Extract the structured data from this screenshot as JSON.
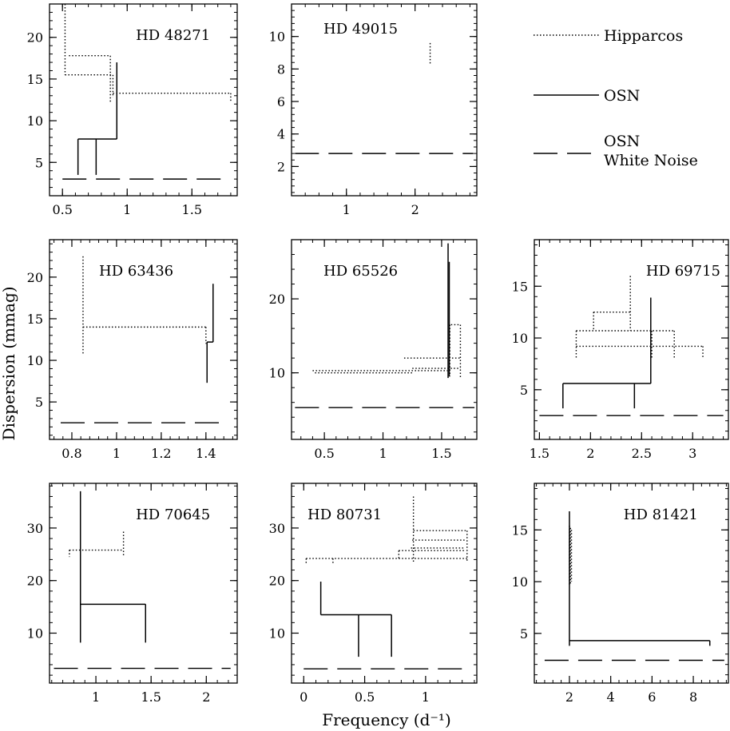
{
  "figure": {
    "ylabel": "Dispersion (mmag)",
    "xlabel": "Frequency (d⁻¹)",
    "legend": [
      {
        "label": "Hipparcos",
        "style": "dotted"
      },
      {
        "label": "OSN",
        "style": "solid"
      },
      {
        "label": "OSN\nWhite Noise",
        "style": "dashed"
      }
    ]
  },
  "chart_data": [
    {
      "type": "line",
      "name": "HD 48271",
      "xlim": [
        0.4,
        1.85
      ],
      "ylim": [
        1,
        24
      ],
      "xticks": [
        0.5,
        1,
        1.5
      ],
      "xticklabels": [
        "0.5",
        "1",
        "1.5"
      ],
      "yticks": [
        5,
        10,
        15,
        20
      ],
      "yticklabels": [
        "5",
        "10",
        "15",
        "20"
      ],
      "segments": [
        {
          "style": "dotted",
          "x": [
            0.52,
            0.52
          ],
          "y": [
            24,
            15.5
          ]
        },
        {
          "style": "dotted",
          "x": [
            0.52,
            0.89
          ],
          "y": [
            15.5,
            15.5
          ]
        },
        {
          "style": "dotted",
          "x": [
            0.55,
            0.87
          ],
          "y": [
            17.8,
            17.8
          ]
        },
        {
          "style": "dotted",
          "x": [
            0.87,
            0.87
          ],
          "y": [
            17.8,
            12.2
          ]
        },
        {
          "style": "dotted",
          "x": [
            0.89,
            0.89
          ],
          "y": [
            15.5,
            12.8
          ]
        },
        {
          "style": "dotted",
          "x": [
            0.89,
            1.8
          ],
          "y": [
            13.3,
            13.3
          ]
        },
        {
          "style": "dotted",
          "x": [
            1.8,
            1.8
          ],
          "y": [
            13.3,
            12.3
          ]
        },
        {
          "style": "solid",
          "x": [
            0.62,
            0.62
          ],
          "y": [
            3.5,
            7.8
          ]
        },
        {
          "style": "solid",
          "x": [
            0.62,
            0.92
          ],
          "y": [
            7.8,
            7.8
          ]
        },
        {
          "style": "solid",
          "x": [
            0.76,
            0.76
          ],
          "y": [
            7.8,
            3.5
          ]
        },
        {
          "style": "solid",
          "x": [
            0.92,
            0.92
          ],
          "y": [
            7.8,
            17.0
          ]
        },
        {
          "style": "dashed",
          "x": [
            0.5,
            1.78
          ],
          "y": [
            3.0,
            3.0
          ]
        }
      ]
    },
    {
      "type": "line",
      "name": "HD 49015",
      "xlim": [
        0.2,
        2.9
      ],
      "ylim": [
        0.2,
        12
      ],
      "xticks": [
        1,
        2
      ],
      "xticklabels": [
        "1",
        "2"
      ],
      "yticks": [
        2,
        4,
        6,
        8,
        10
      ],
      "yticklabels": [
        "2",
        "4",
        "6",
        "8",
        "10"
      ],
      "segments": [
        {
          "style": "dotted",
          "x": [
            2.22,
            2.22
          ],
          "y": [
            9.6,
            8.3
          ]
        },
        {
          "style": "dashed",
          "x": [
            0.25,
            2.85
          ],
          "y": [
            2.8,
            2.8
          ]
        }
      ]
    },
    {
      "type": "line",
      "name": "HD 63436",
      "xlim": [
        0.7,
        1.54
      ],
      "ylim": [
        0.5,
        24.5
      ],
      "xticks": [
        0.8,
        1,
        1.2,
        1.4
      ],
      "xticklabels": [
        "0.8",
        "1",
        "1.2",
        "1.4"
      ],
      "yticks": [
        5,
        10,
        15,
        20
      ],
      "yticklabels": [
        "5",
        "10",
        "15",
        "20"
      ],
      "segments": [
        {
          "style": "dotted",
          "x": [
            0.85,
            0.85
          ],
          "y": [
            22.5,
            10.8
          ]
        },
        {
          "style": "dotted",
          "x": [
            0.85,
            1.4
          ],
          "y": [
            14.0,
            14.0
          ]
        },
        {
          "style": "dotted",
          "x": [
            1.4,
            1.4
          ],
          "y": [
            14.0,
            12.0
          ]
        },
        {
          "style": "solid",
          "x": [
            1.405,
            1.405
          ],
          "y": [
            12.2,
            7.3
          ]
        },
        {
          "style": "solid",
          "x": [
            1.405,
            1.432
          ],
          "y": [
            12.2,
            12.2
          ]
        },
        {
          "style": "solid",
          "x": [
            1.432,
            1.432
          ],
          "y": [
            12.2,
            19.2
          ]
        },
        {
          "style": "dashed",
          "x": [
            0.75,
            1.5
          ],
          "y": [
            2.5,
            2.5
          ]
        }
      ]
    },
    {
      "type": "line",
      "name": "HD 65526",
      "xlim": [
        0.22,
        1.8
      ],
      "ylim": [
        1,
        28
      ],
      "xticks": [
        0.5,
        1,
        1.5
      ],
      "xticklabels": [
        "0.5",
        "1",
        "1.5"
      ],
      "yticks": [
        10,
        20
      ],
      "yticklabels": [
        "10",
        "20"
      ],
      "segments": [
        {
          "style": "dotted",
          "x": [
            0.4,
            1.55
          ],
          "y": [
            10.3,
            10.3
          ]
        },
        {
          "style": "dotted",
          "x": [
            0.42,
            1.25
          ],
          "y": [
            10.0,
            10.0
          ]
        },
        {
          "style": "dotted",
          "x": [
            1.18,
            1.66
          ],
          "y": [
            12.0,
            12.0
          ]
        },
        {
          "style": "dotted",
          "x": [
            1.25,
            1.66
          ],
          "y": [
            10.6,
            10.6
          ]
        },
        {
          "style": "dotted",
          "x": [
            1.58,
            1.66
          ],
          "y": [
            16.5,
            16.5
          ]
        },
        {
          "style": "dotted",
          "x": [
            1.66,
            1.66
          ],
          "y": [
            16.5,
            9.3
          ]
        },
        {
          "style": "dotted",
          "x": [
            1.57,
            1.57
          ],
          "y": [
            16.5,
            9.5
          ]
        },
        {
          "style": "solid",
          "x": [
            1.555,
            1.555
          ],
          "y": [
            9.3,
            27.5
          ]
        },
        {
          "style": "solid",
          "x": [
            1.565,
            1.565
          ],
          "y": [
            9.5,
            25.0
          ]
        },
        {
          "style": "dashed",
          "x": [
            0.25,
            1.78
          ],
          "y": [
            5.3,
            5.3
          ]
        }
      ]
    },
    {
      "type": "line",
      "name": "HD 69715",
      "xlim": [
        1.45,
        3.35
      ],
      "ylim": [
        0.2,
        19.5
      ],
      "xticks": [
        1.5,
        2,
        2.5,
        3
      ],
      "xticklabels": [
        "1.5",
        "2",
        "2.5",
        "3"
      ],
      "yticks": [
        5,
        10,
        15
      ],
      "yticklabels": [
        "5",
        "10",
        "15"
      ],
      "segments": [
        {
          "style": "dotted",
          "x": [
            2.39,
            2.39
          ],
          "y": [
            16.0,
            10.7
          ]
        },
        {
          "style": "dotted",
          "x": [
            2.03,
            2.39
          ],
          "y": [
            12.5,
            12.5
          ]
        },
        {
          "style": "dotted",
          "x": [
            2.03,
            2.03
          ],
          "y": [
            12.5,
            10.7
          ]
        },
        {
          "style": "dotted",
          "x": [
            1.86,
            2.82
          ],
          "y": [
            10.7,
            10.7
          ]
        },
        {
          "style": "dotted",
          "x": [
            2.82,
            2.82
          ],
          "y": [
            10.7,
            8.0
          ]
        },
        {
          "style": "dotted",
          "x": [
            1.86,
            3.1
          ],
          "y": [
            9.2,
            9.2
          ]
        },
        {
          "style": "dotted",
          "x": [
            1.86,
            1.86
          ],
          "y": [
            10.7,
            8.0
          ]
        },
        {
          "style": "dotted",
          "x": [
            3.1,
            3.1
          ],
          "y": [
            9.2,
            8.0
          ]
        },
        {
          "style": "dotted",
          "x": [
            2.6,
            2.6
          ],
          "y": [
            10.7,
            8.0
          ]
        },
        {
          "style": "solid",
          "x": [
            1.73,
            1.73
          ],
          "y": [
            3.2,
            5.6
          ]
        },
        {
          "style": "solid",
          "x": [
            1.73,
            2.59
          ],
          "y": [
            5.6,
            5.6
          ]
        },
        {
          "style": "solid",
          "x": [
            2.43,
            2.43
          ],
          "y": [
            5.6,
            3.2
          ]
        },
        {
          "style": "solid",
          "x": [
            2.59,
            2.59
          ],
          "y": [
            5.6,
            13.9
          ]
        },
        {
          "style": "dashed",
          "x": [
            1.5,
            3.3
          ],
          "y": [
            2.5,
            2.5
          ]
        }
      ]
    },
    {
      "type": "line",
      "name": "HD 70645",
      "xlim": [
        0.58,
        2.28
      ],
      "ylim": [
        0.5,
        38.5
      ],
      "xticks": [
        1,
        1.5,
        2
      ],
      "xticklabels": [
        "1",
        "1.5",
        "2"
      ],
      "yticks": [
        10,
        20,
        30
      ],
      "yticklabels": [
        "10",
        "20",
        "30"
      ],
      "segments": [
        {
          "style": "dotted",
          "x": [
            0.76,
            1.25
          ],
          "y": [
            25.8,
            25.8
          ]
        },
        {
          "style": "dotted",
          "x": [
            1.25,
            1.25
          ],
          "y": [
            29.3,
            24.5
          ]
        },
        {
          "style": "dotted",
          "x": [
            0.76,
            0.76
          ],
          "y": [
            25.8,
            24.5
          ]
        },
        {
          "style": "solid",
          "x": [
            0.86,
            0.86
          ],
          "y": [
            8.2,
            37.0
          ]
        },
        {
          "style": "solid",
          "x": [
            0.86,
            1.45
          ],
          "y": [
            15.5,
            15.5
          ]
        },
        {
          "style": "solid",
          "x": [
            1.45,
            1.45
          ],
          "y": [
            15.5,
            8.2
          ]
        },
        {
          "style": "dashed",
          "x": [
            0.62,
            2.22
          ],
          "y": [
            3.3,
            3.3
          ]
        }
      ]
    },
    {
      "type": "line",
      "name": "HD 80731",
      "xlim": [
        -0.1,
        1.42
      ],
      "ylim": [
        0.5,
        38.5
      ],
      "xticks": [
        0,
        0.5,
        1
      ],
      "xticklabels": [
        "0",
        "0.5",
        "1"
      ],
      "yticks": [
        10,
        20,
        30
      ],
      "yticklabels": [
        "10",
        "20",
        "30"
      ],
      "segments": [
        {
          "style": "dotted",
          "x": [
            0.02,
            1.35
          ],
          "y": [
            24.2,
            24.2
          ]
        },
        {
          "style": "dotted",
          "x": [
            0.02,
            0.02
          ],
          "y": [
            24.2,
            23.0
          ]
        },
        {
          "style": "dotted",
          "x": [
            0.24,
            0.24
          ],
          "y": [
            24.2,
            23.0
          ]
        },
        {
          "style": "dotted",
          "x": [
            0.78,
            1.32
          ],
          "y": [
            25.7,
            25.7
          ]
        },
        {
          "style": "dotted",
          "x": [
            0.88,
            1.32
          ],
          "y": [
            26.2,
            26.2
          ]
        },
        {
          "style": "dotted",
          "x": [
            0.89,
            1.33
          ],
          "y": [
            27.7,
            27.7
          ]
        },
        {
          "style": "dotted",
          "x": [
            0.9,
            1.34
          ],
          "y": [
            29.5,
            29.5
          ]
        },
        {
          "style": "dotted",
          "x": [
            0.9,
            0.9
          ],
          "y": [
            36.0,
            23.5
          ]
        },
        {
          "style": "dotted",
          "x": [
            1.34,
            1.34
          ],
          "y": [
            29.5,
            23.5
          ]
        },
        {
          "style": "dotted",
          "x": [
            0.78,
            0.78
          ],
          "y": [
            25.7,
            24.2
          ]
        },
        {
          "style": "solid",
          "x": [
            0.14,
            0.14
          ],
          "y": [
            19.8,
            13.5
          ]
        },
        {
          "style": "solid",
          "x": [
            0.14,
            0.72
          ],
          "y": [
            13.5,
            13.5
          ]
        },
        {
          "style": "solid",
          "x": [
            0.45,
            0.45
          ],
          "y": [
            13.5,
            5.5
          ]
        },
        {
          "style": "solid",
          "x": [
            0.72,
            0.72
          ],
          "y": [
            13.5,
            5.5
          ]
        },
        {
          "style": "dashed",
          "x": [
            0.0,
            1.32
          ],
          "y": [
            3.2,
            3.2
          ]
        }
      ]
    },
    {
      "type": "line",
      "name": "HD 81421",
      "xlim": [
        0.3,
        9.7
      ],
      "ylim": [
        0.2,
        19.5
      ],
      "xticks": [
        2,
        4,
        6,
        8
      ],
      "xticklabels": [
        "2",
        "4",
        "6",
        "8"
      ],
      "yticks": [
        5,
        10,
        15
      ],
      "yticklabels": [
        "5",
        "10",
        "15"
      ],
      "segments": [
        {
          "style": "dotted",
          "x": [
            2.0,
            2.0
          ],
          "y": [
            15.4,
            9.6
          ]
        },
        {
          "style": "dotted",
          "x": [
            2.05,
            2.05
          ],
          "y": [
            15.2,
            9.8
          ]
        },
        {
          "style": "dotted",
          "x": [
            2.1,
            2.1
          ],
          "y": [
            15.0,
            10.0
          ]
        },
        {
          "style": "solid",
          "x": [
            2.0,
            2.0
          ],
          "y": [
            3.8,
            16.8
          ]
        },
        {
          "style": "solid",
          "x": [
            2.0,
            8.8
          ],
          "y": [
            4.3,
            4.3
          ]
        },
        {
          "style": "solid",
          "x": [
            8.8,
            8.8
          ],
          "y": [
            4.3,
            3.8
          ]
        },
        {
          "style": "dashed",
          "x": [
            0.8,
            9.5
          ],
          "y": [
            2.4,
            2.4
          ]
        }
      ]
    }
  ]
}
